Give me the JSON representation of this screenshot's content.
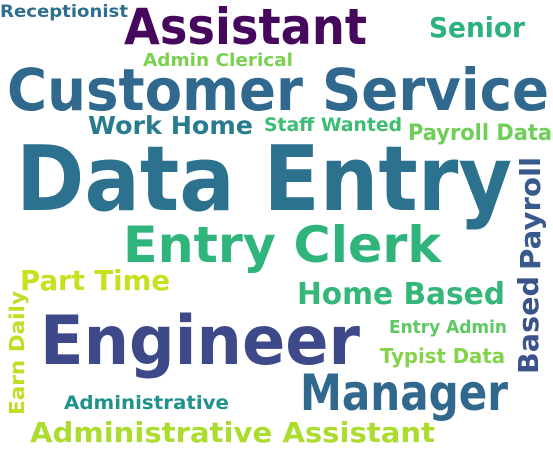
{
  "cloud": {
    "words": [
      {
        "text": "Receptionist",
        "color": "#2e6e8e"
      },
      {
        "text": "Assistant",
        "color": "#46085c"
      },
      {
        "text": "Senior",
        "color": "#2db27d"
      },
      {
        "text": "Admin Clerical",
        "color": "#7ad151"
      },
      {
        "text": "Customer Service",
        "color": "#31688e"
      },
      {
        "text": "Work Home",
        "color": "#287c8e"
      },
      {
        "text": "Staff Wanted",
        "color": "#3fbc73"
      },
      {
        "text": "Payroll Data",
        "color": "#6ece58"
      },
      {
        "text": "Data Entry",
        "color": "#2c728e"
      },
      {
        "text": "Payroll",
        "color": "#38598c"
      },
      {
        "text": "Entry Clerk",
        "color": "#2fb47c"
      },
      {
        "text": "Part Time",
        "color": "#c8e020"
      },
      {
        "text": "Home Based",
        "color": "#35b779"
      },
      {
        "text": "Based",
        "color": "#3b528b"
      },
      {
        "text": "Earn Daily",
        "color": "#bddf26"
      },
      {
        "text": "Engineer",
        "color": "#3e4989"
      },
      {
        "text": "Entry Admin",
        "color": "#5ec962"
      },
      {
        "text": "Typist Data",
        "color": "#84d44b"
      },
      {
        "text": "Manager",
        "color": "#31688e"
      },
      {
        "text": "Administrative",
        "color": "#21918c"
      },
      {
        "text": "Administrative Assistant",
        "color": "#addc30"
      }
    ]
  }
}
